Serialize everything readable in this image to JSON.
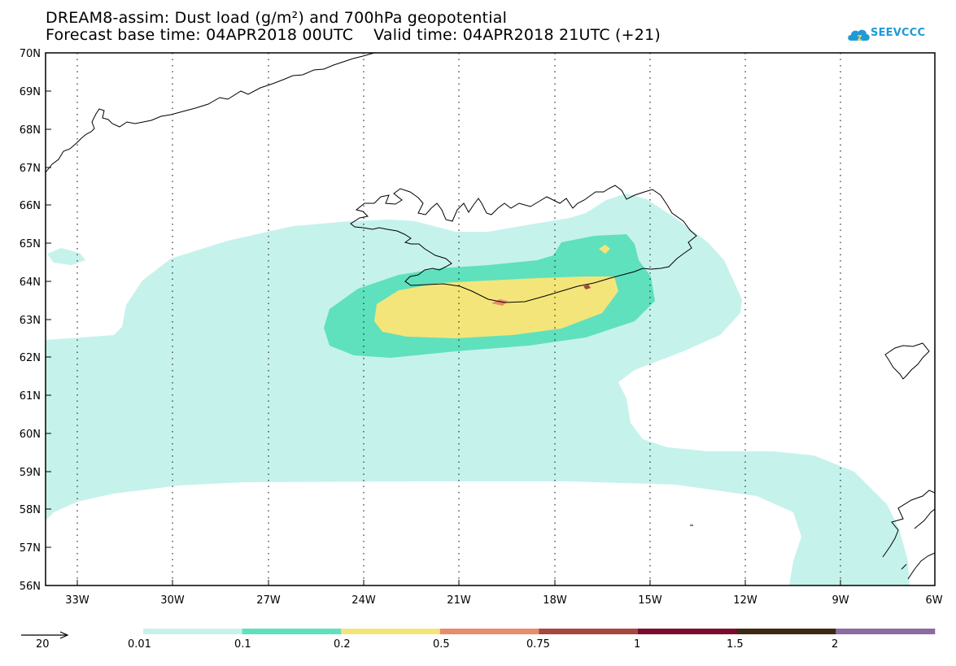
{
  "title": {
    "line1": "DREAM8-assim: Dust load (g/m²) and 700hPa geopotential",
    "line2": "Forecast base time: 04APR2018 00UTC    Valid time: 04APR2018 21UTC (+21)"
  },
  "logo": {
    "text": "SEEVCCC",
    "icon": "cloud-icon",
    "color": "#1f9ad8"
  },
  "axes": {
    "lat_labels": [
      "70N",
      "69N",
      "68N",
      "67N",
      "66N",
      "65N",
      "64N",
      "63N",
      "62N",
      "61N",
      "60N",
      "59N",
      "58N",
      "57N",
      "56N"
    ],
    "lon_labels": [
      "33W",
      "30W",
      "27W",
      "24W",
      "21W",
      "18W",
      "15W",
      "12W",
      "9W",
      "6W"
    ]
  },
  "legend": {
    "arrow_value": "20",
    "bins": [
      {
        "color": "#c6f2ec",
        "label": "0.01"
      },
      {
        "color": "#5fe1bd",
        "label": "0.1"
      },
      {
        "color": "#f4e57a",
        "label": "0.2"
      },
      {
        "color": "#e98c6a",
        "label": "0.5"
      },
      {
        "color": "#a5483f",
        "label": "0.75"
      },
      {
        "color": "#7c0b2e",
        "label": "1"
      },
      {
        "color": "#402712",
        "label": "1.5"
      },
      {
        "color": "#8e6aa3",
        "label": "2"
      }
    ]
  }
}
